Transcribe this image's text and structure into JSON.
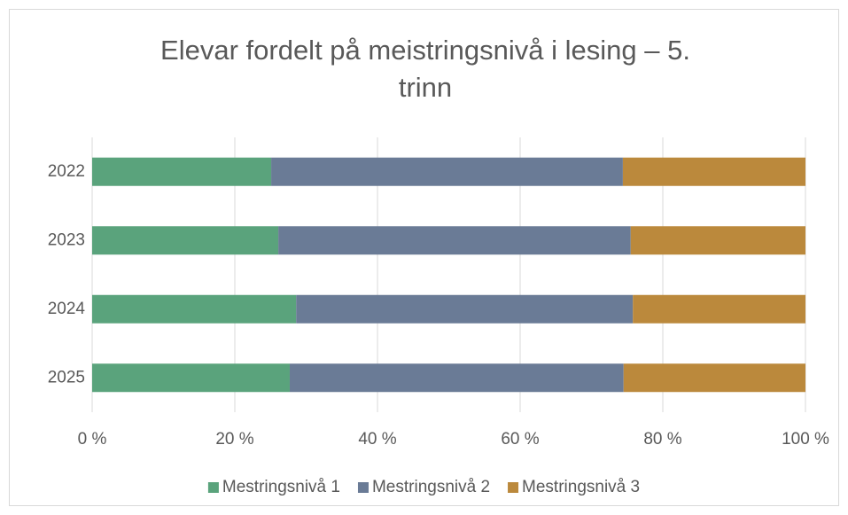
{
  "chart_data": {
    "type": "stacked_bar_horizontal",
    "title": "Elevar fordelt på meistringsnivå i lesing – 5. trinn",
    "categories": [
      "2022",
      "2023",
      "2024",
      "2025"
    ],
    "series": [
      {
        "name": "Mestringsnivå 1",
        "color": "#5aa37c",
        "values": [
          25.1,
          26.1,
          28.6,
          27.7
        ]
      },
      {
        "name": "Mestringsnivå 2",
        "color": "#6a7b96",
        "values": [
          49.3,
          49.4,
          47.2,
          46.8
        ]
      },
      {
        "name": "Mestringsnivå 3",
        "color": "#bb893c",
        "values": [
          25.6,
          24.5,
          24.2,
          25.5
        ]
      }
    ],
    "xlim": [
      0,
      100
    ],
    "xticks": [
      {
        "value": 0,
        "label": "0 %"
      },
      {
        "value": 20,
        "label": "20 %"
      },
      {
        "value": 40,
        "label": "40 %"
      },
      {
        "value": 60,
        "label": "60 %"
      },
      {
        "value": 80,
        "label": "80 %"
      },
      {
        "value": 100,
        "label": "100 %"
      }
    ],
    "grid": true,
    "legend": "bottom"
  }
}
